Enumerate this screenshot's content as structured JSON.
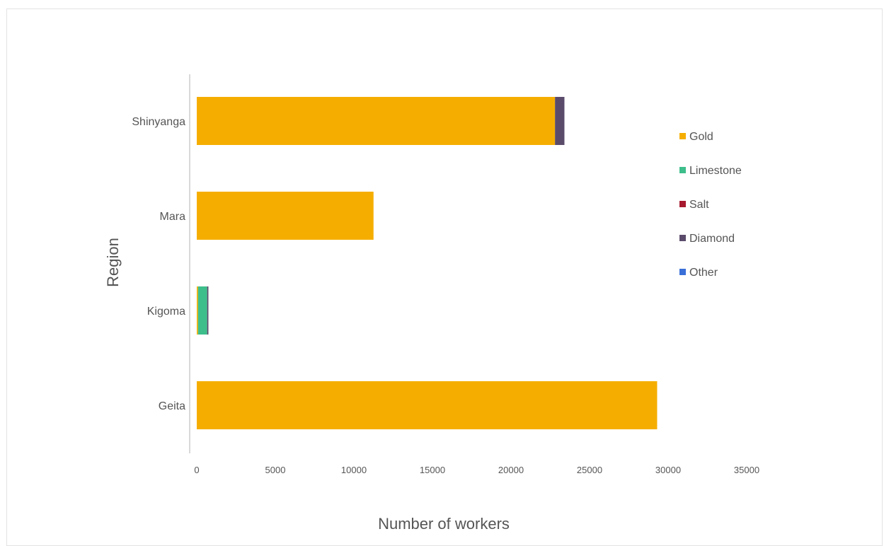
{
  "chart_data": {
    "type": "bar",
    "orientation": "horizontal",
    "stacked": true,
    "title": "",
    "xlabel": "Number of workers",
    "ylabel": "Region",
    "xlim": [
      0,
      35000
    ],
    "xticks": [
      0,
      5000,
      10000,
      15000,
      20000,
      25000,
      30000,
      35000
    ],
    "categories": [
      "Shinyanga",
      "Mara",
      "Kigoma",
      "Geita"
    ],
    "series": [
      {
        "name": "Gold",
        "color": "#F5AE00",
        "values": [
          22800,
          11250,
          80,
          29300
        ]
      },
      {
        "name": "Limestone",
        "color": "#3DBE8B",
        "values": [
          0,
          0,
          580,
          0
        ]
      },
      {
        "name": "Salt",
        "color": "#A6192E",
        "values": [
          0,
          0,
          0,
          0
        ]
      },
      {
        "name": "Diamond",
        "color": "#5B4B6B",
        "values": [
          600,
          0,
          80,
          0
        ]
      },
      {
        "name": "Other",
        "color": "#3A6FD8",
        "values": [
          0,
          0,
          0,
          0
        ]
      }
    ],
    "grid": false,
    "legend_position": "right"
  }
}
